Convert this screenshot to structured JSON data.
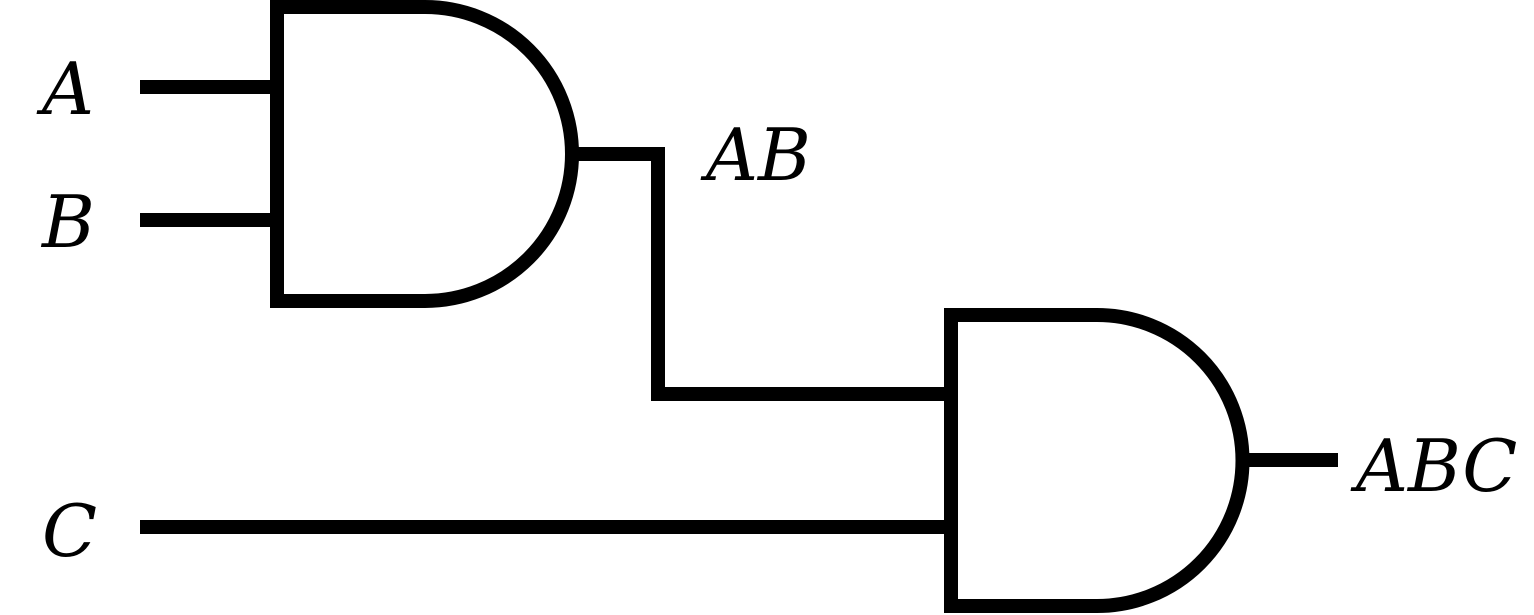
{
  "colors": {
    "stroke": "#000000",
    "background": "#ffffff"
  },
  "diagram": {
    "type": "logic-circuit",
    "gates": [
      {
        "id": "gate1",
        "kind": "AND",
        "inputs": [
          "A",
          "B"
        ],
        "output": "AB"
      },
      {
        "id": "gate2",
        "kind": "AND",
        "inputs": [
          "AB",
          "C"
        ],
        "output": "ABC"
      }
    ],
    "labels": {
      "input_a": "A",
      "input_b": "B",
      "input_c": "C",
      "gate1_output": "AB",
      "gate2_output": "ABC"
    }
  }
}
